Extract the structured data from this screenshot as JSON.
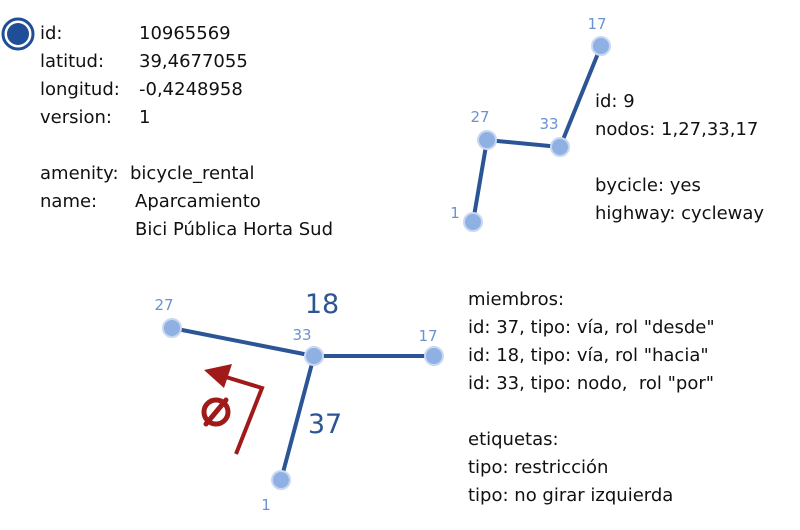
{
  "node": {
    "fields": [
      {
        "key": "id:",
        "value": "10965569"
      },
      {
        "key": "latitud:",
        "value": "39,4677055"
      },
      {
        "key": "longitud:",
        "value": "-0,4248958"
      },
      {
        "key": "version:",
        "value": "1"
      }
    ],
    "tags": [
      {
        "key": "amenity:",
        "value": "bicycle_rental"
      },
      {
        "key": "name:",
        "value": "Aparcamiento"
      },
      {
        "key": "",
        "value": "Bici Pública Horta Sud"
      }
    ]
  },
  "way": {
    "lines": [
      "id: 9",
      "nodos: 1,27,33,17",
      "",
      "bycicle: yes",
      "highway: cycleway"
    ],
    "node_labels": [
      "17",
      "27",
      "33",
      "1"
    ]
  },
  "relation": {
    "way_labels": [
      "18",
      "37"
    ],
    "node_labels": [
      "27",
      "33",
      "17",
      "1"
    ],
    "lines": [
      "miembros:",
      "id: 37, tipo: vía, rol \"desde\"",
      "id: 18, tipo: vía, rol \"hacia\"",
      "id: 33, tipo: nodo,  rol \"por\"",
      "",
      "etiquetas:",
      "tipo: restricción",
      "tipo: no girar izquierda"
    ]
  },
  "colors": {
    "way_line": "#2b5594",
    "node_fill": "#8fb0e3",
    "node_label": "#6b93cf",
    "node_marker": "#1f4e96",
    "restriction": "#a11a1a",
    "text": "#111111"
  },
  "icons": [
    "node-marker-icon",
    "no-left-turn-icon"
  ]
}
